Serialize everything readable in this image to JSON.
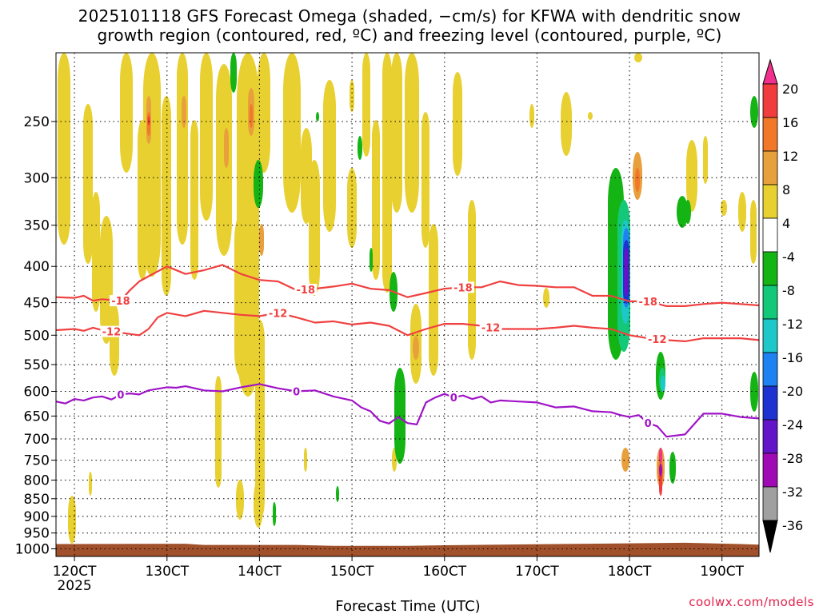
{
  "header": {
    "title_line1": "2025101118 GFS Forecast Omega (shaded, −cm/s) for KFWA with dendritic snow",
    "title_line2": "growth region (contoured, red, ºC) and freezing level (contoured, purple, ºC)"
  },
  "credit": "coolwx.com/models",
  "chart_data": {
    "type": "heatmap",
    "xlabel": "Forecast Time (UTC)",
    "ylabel": "",
    "x_range_hours": [
      -2,
      74
    ],
    "x_ticks": [
      {
        "label": "120CT",
        "hour": 0,
        "sub": "2025"
      },
      {
        "label": "130CT",
        "hour": 10
      },
      {
        "label": "140CT",
        "hour": 20
      },
      {
        "label": "150CT",
        "hour": 30
      },
      {
        "label": "160CT",
        "hour": 40
      },
      {
        "label": "170CT",
        "hour": 50
      },
      {
        "label": "180CT",
        "hour": 60
      },
      {
        "label": "190CT",
        "hour": 70
      }
    ],
    "y_axis": {
      "scale": "log",
      "range_hpa": [
        1025,
        200
      ],
      "inverted": true
    },
    "y_ticks": [
      250,
      300,
      350,
      400,
      450,
      500,
      550,
      600,
      650,
      700,
      750,
      800,
      850,
      900,
      950,
      1000
    ],
    "grid": "dotted",
    "colorbar": {
      "levels": [
        20,
        16,
        12,
        8,
        4,
        -4,
        -8,
        -12,
        -16,
        -20,
        -24,
        -28,
        -32,
        -36
      ],
      "colors": [
        "#f0308c",
        "#f03c3c",
        "#f07828",
        "#e8a03c",
        "#e8d030",
        "#ffffff",
        "#14b414",
        "#14c87a",
        "#1ec8c8",
        "#1e82f0",
        "#1e32d2",
        "#6414c8",
        "#a00ab4",
        "#a0a0a0",
        "#000000"
      ],
      "placement": "right"
    },
    "terrain_color": "#a0502a",
    "contours": [
      {
        "name": "-18",
        "color": "#f04040",
        "label": "-18",
        "hours": [
          -2,
          0,
          1,
          2,
          3,
          5,
          6,
          7,
          8,
          10,
          12,
          14,
          16,
          18,
          20,
          22,
          24,
          26,
          28,
          30,
          32,
          34,
          36,
          38,
          40,
          42,
          44,
          46,
          48,
          50,
          52,
          54,
          56,
          58,
          60,
          62,
          64,
          66,
          68,
          70,
          72,
          74
        ],
        "hpa": [
          442,
          443,
          440,
          447,
          445,
          447,
          432,
          420,
          413,
          400,
          410,
          405,
          398,
          410,
          418,
          420,
          432,
          430,
          427,
          423,
          430,
          432,
          442,
          436,
          430,
          428,
          428,
          420,
          425,
          426,
          428,
          428,
          440,
          440,
          448,
          448,
          455,
          455,
          452,
          450,
          452,
          454
        ],
        "label_hours": [
          5,
          25,
          42,
          62
        ]
      },
      {
        "name": "-12",
        "color": "#f04040",
        "label": "-12",
        "hours": [
          -2,
          0,
          1,
          2,
          3,
          5,
          7,
          8,
          9,
          10,
          12,
          14,
          16,
          18,
          20,
          22,
          24,
          26,
          28,
          30,
          32,
          34,
          36,
          38,
          40,
          42,
          44,
          46,
          48,
          50,
          52,
          54,
          56,
          58,
          60,
          62,
          64,
          66,
          68,
          70,
          72,
          74
        ],
        "hpa": [
          492,
          490,
          493,
          488,
          492,
          496,
          500,
          490,
          472,
          465,
          470,
          462,
          465,
          468,
          470,
          465,
          472,
          480,
          478,
          483,
          480,
          485,
          500,
          490,
          482,
          482,
          485,
          490,
          490,
          490,
          488,
          485,
          488,
          490,
          500,
          505,
          508,
          510,
          505,
          505,
          505,
          508
        ],
        "label_hours": [
          4,
          22,
          45,
          63
        ]
      },
      {
        "name": "0",
        "color": "#a014c8",
        "label": "0",
        "hours": [
          -2,
          -1,
          0,
          1,
          2,
          3,
          4,
          5,
          6,
          7,
          8,
          9,
          10,
          11,
          12,
          14,
          16,
          18,
          20,
          22,
          24,
          26,
          28,
          30,
          31,
          32,
          33,
          34,
          35,
          36,
          37,
          38,
          39,
          40,
          41,
          42,
          43,
          44,
          45,
          46,
          48,
          50,
          52,
          54,
          56,
          58,
          59,
          60,
          61,
          62,
          63,
          64,
          66,
          68,
          70,
          72,
          74
        ],
        "hpa": [
          620,
          624,
          615,
          618,
          612,
          610,
          616,
          606,
          604,
          606,
          598,
          595,
          592,
          593,
          590,
          598,
          600,
          592,
          586,
          594,
          600,
          598,
          610,
          618,
          632,
          640,
          660,
          666,
          652,
          665,
          668,
          622,
          612,
          605,
          612,
          608,
          615,
          610,
          622,
          618,
          620,
          622,
          632,
          630,
          640,
          642,
          648,
          652,
          648,
          665,
          672,
          695,
          690,
          645,
          645,
          652,
          655
        ],
        "label_hours": [
          5,
          24,
          41,
          62
        ]
      }
    ]
  }
}
